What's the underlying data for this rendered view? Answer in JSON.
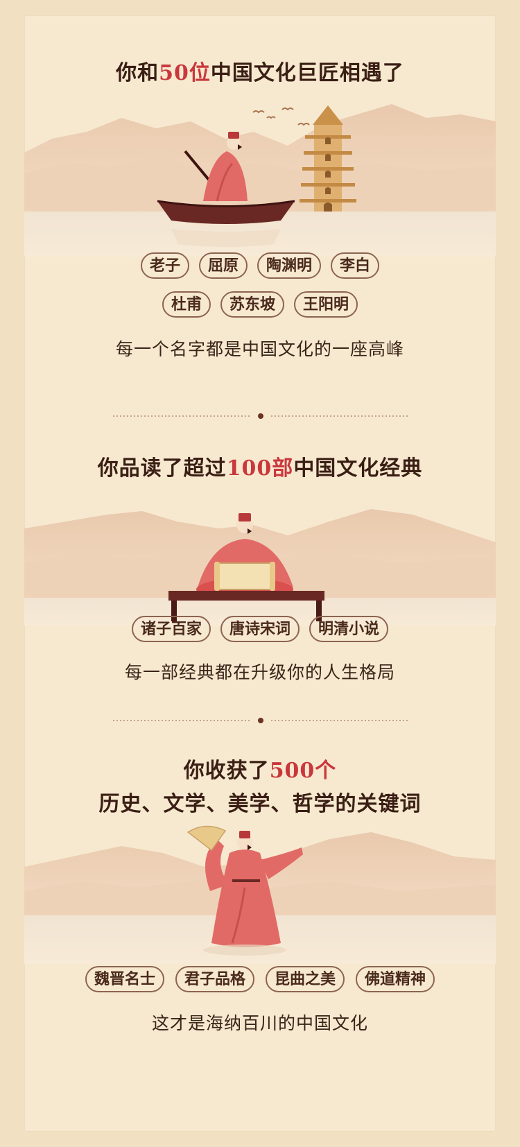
{
  "section1": {
    "heading": {
      "before": "你和",
      "num": "50位",
      "after": "中国文化巨匠相遇了"
    },
    "tags_row1": [
      "老子",
      "屈原",
      "陶渊明",
      "李白"
    ],
    "tags_row2": [
      "杜甫",
      "苏东坡",
      "王阳明"
    ],
    "subtitle": "每一个名字都是中国文化的一座高峰"
  },
  "section2": {
    "heading": {
      "before": "你品读了超过",
      "num": "100部",
      "after": "中国文化经典"
    },
    "tags": [
      "诸子百家",
      "唐诗宋词",
      "明清小说"
    ],
    "subtitle": "每一部经典都在升级你的人生格局"
  },
  "section3": {
    "heading_line1": {
      "before": "你收获了",
      "num": "500个"
    },
    "heading_line2": "历史、文学、美学、哲学的关键词",
    "tags": [
      "魏晋名士",
      "君子品格",
      "昆曲之美",
      "佛道精神"
    ],
    "subtitle": "这才是海纳百川的中国文化"
  },
  "colors": {
    "background": "#f2e0c2",
    "card": "#f7e9d0",
    "heading": "#3a1e14",
    "accent": "#c9383c",
    "tag_border": "#8c6450",
    "mountain": "#e7c7ad",
    "robe": "#e36b67",
    "boat": "#6a2824",
    "pagoda": "#d9a45a"
  }
}
